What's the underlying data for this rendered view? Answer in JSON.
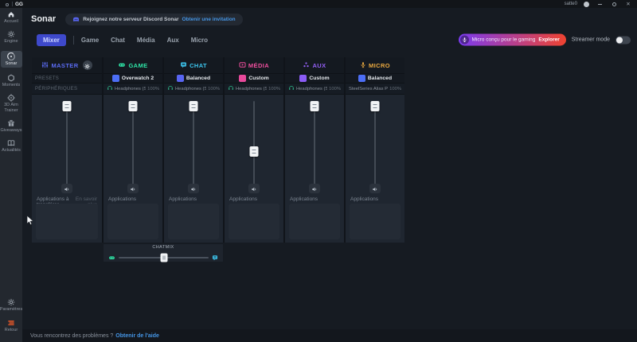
{
  "titlebar": {
    "app_name": "GG",
    "username": "satte0"
  },
  "header": {
    "title": "Sonar",
    "discord": {
      "text": "Rejoignez notre serveur Discord Sonar",
      "link": "Obtenir une invitation",
      "link_color": "#4596e6"
    }
  },
  "tabs": {
    "items": [
      "Mixer",
      "Game",
      "Chat",
      "Média",
      "Aux",
      "Micro"
    ],
    "selected": "Mixer",
    "selected_bg": "#3e49cb"
  },
  "promo": {
    "label": "Micro conçu pour le gaming",
    "cta": "Explorer",
    "gradient": [
      "#7b3bf0",
      "#ef4330"
    ]
  },
  "streamer": {
    "label": "Streamer mode",
    "enabled": false
  },
  "sidebar": {
    "items": [
      {
        "label": "Accueil",
        "icon": "home-icon"
      },
      {
        "label": "Engine",
        "icon": "gear-icon"
      },
      {
        "label": "Sonar",
        "icon": "sonar-icon",
        "selected": true
      },
      {
        "label": "Moments",
        "icon": "hexagon-icon"
      },
      {
        "label": "3D Aim Trainer",
        "icon": "target-icon"
      },
      {
        "label": "Giveaways",
        "icon": "gift-icon"
      },
      {
        "label": "Actualités",
        "icon": "news-icon"
      }
    ],
    "bottom": [
      {
        "label": "Paramètres",
        "icon": "gear-icon"
      },
      {
        "label": "Retour",
        "icon": "retour-icon",
        "accent": "#f05a28"
      }
    ]
  },
  "mixer": {
    "row_labels": {
      "presets": "PRESETS",
      "devices": "PÉRIPHÉRIQUES"
    },
    "chatmix_label": "CHATMIX",
    "channels": [
      {
        "name": "MASTER",
        "color": "#5b6cf5",
        "icon": "sliders-icon",
        "level_pct": 100,
        "apps_label": "Applications à transférer",
        "more_label": "En savoir plus"
      },
      {
        "name": "GAME",
        "color": "#2ee6a7",
        "icon": "gamepad-icon",
        "preset": "Overwatch 2",
        "preset_color": "#4c6ef5",
        "device": "Headphones (SteelS…",
        "device_pct": "100%",
        "device_icon": "headphones-icon",
        "level_pct": 100,
        "apps_label": "Applications"
      },
      {
        "name": "CHAT",
        "color": "#3dc7f0",
        "icon": "chat-icon",
        "preset": "Balanced",
        "preset_color": "#5865f2",
        "device": "Headphones (SteelS…",
        "device_pct": "100%",
        "device_icon": "headphones-icon",
        "level_pct": 100,
        "apps_label": "Applications"
      },
      {
        "name": "MÉDIA",
        "color": "#f04f9e",
        "icon": "media-icon",
        "preset": "Custom",
        "preset_color": "#e8499b",
        "device": "Headphones (SteelS…",
        "device_pct": "100%",
        "device_icon": "headphones-icon",
        "level_pct": 40,
        "apps_label": "Applications"
      },
      {
        "name": "AUX",
        "color": "#9460f6",
        "icon": "aux-icon",
        "preset": "Custom",
        "preset_color": "#8b5cf6",
        "device": "Headphones (SteelS…",
        "device_pct": "100%",
        "device_icon": "headphones-icon",
        "level_pct": 100,
        "apps_label": "Applications"
      },
      {
        "name": "MICRO",
        "color": "#ecaa3f",
        "icon": "mic-icon",
        "preset": "Balanced",
        "preset_color": "#4c6ef5",
        "device": "SteelSeries Alias Pro Inpu…",
        "device_pct": "100%",
        "device_icon": null,
        "level_pct": 100,
        "apps_label": "Applications"
      }
    ]
  },
  "footer": {
    "text": "Vous rencontrez des problèmes ?",
    "link": "Obtenir de l'aide"
  }
}
